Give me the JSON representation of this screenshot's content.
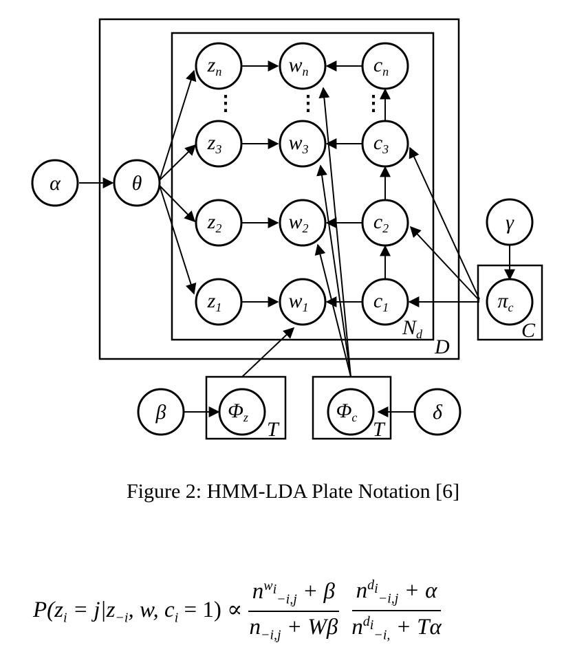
{
  "diagram": {
    "nodes": {
      "alpha": "α",
      "theta": "θ",
      "beta": "β",
      "delta": "δ",
      "gamma": "γ",
      "z1": {
        "base": "z",
        "sub": "1"
      },
      "z2": {
        "base": "z",
        "sub": "2"
      },
      "z3": {
        "base": "z",
        "sub": "3"
      },
      "zn": {
        "base": "z",
        "sub": "n"
      },
      "w1": {
        "base": "w",
        "sub": "1"
      },
      "w2": {
        "base": "w",
        "sub": "2"
      },
      "w3": {
        "base": "w",
        "sub": "3"
      },
      "wn": {
        "base": "w",
        "sub": "n"
      },
      "c1": {
        "base": "c",
        "sub": "1"
      },
      "c2": {
        "base": "c",
        "sub": "2"
      },
      "c3": {
        "base": "c",
        "sub": "3"
      },
      "cn": {
        "base": "c",
        "sub": "n"
      },
      "phi_z": {
        "base": "Φ",
        "sub": "z"
      },
      "phi_c": {
        "base": "Φ",
        "sub": "c"
      },
      "pi_c": {
        "base": "π",
        "sub": "c"
      }
    },
    "plates": {
      "documents": "D",
      "words": {
        "base": "N",
        "sub": "d"
      },
      "classes": "C",
      "topics_z": "T",
      "topics_c": "T"
    }
  },
  "caption": "Figure 2: HMM-LDA Plate Notation [6]",
  "formula": {
    "lhs": "P(z",
    "lhs_sub": "i",
    "lhs_mid": " = j|z",
    "lhs_sub2": "−i",
    "lhs_end": ", w, c",
    "lhs_sub3": "i",
    "lhs_tail": " = 1) ∝ ",
    "frac1_num": "n",
    "frac1_num_sup": "w",
    "frac1_num_sup_sub": "i",
    "frac1_num_sub": "−i,j",
    "frac1_num_tail": " + β",
    "frac1_den": "n",
    "frac1_den_sub": "−i,j",
    "frac1_den_tail": " + Wβ",
    "frac2_num": "n",
    "frac2_num_sup": "d",
    "frac2_num_sup_sub": "i",
    "frac2_num_sub": "−i,j",
    "frac2_num_tail": " + α",
    "frac2_den": "n",
    "frac2_den_sup": "d",
    "frac2_den_sup_sub": "i",
    "frac2_den_sub": "−i,",
    "frac2_den_tail": " + Tα"
  }
}
